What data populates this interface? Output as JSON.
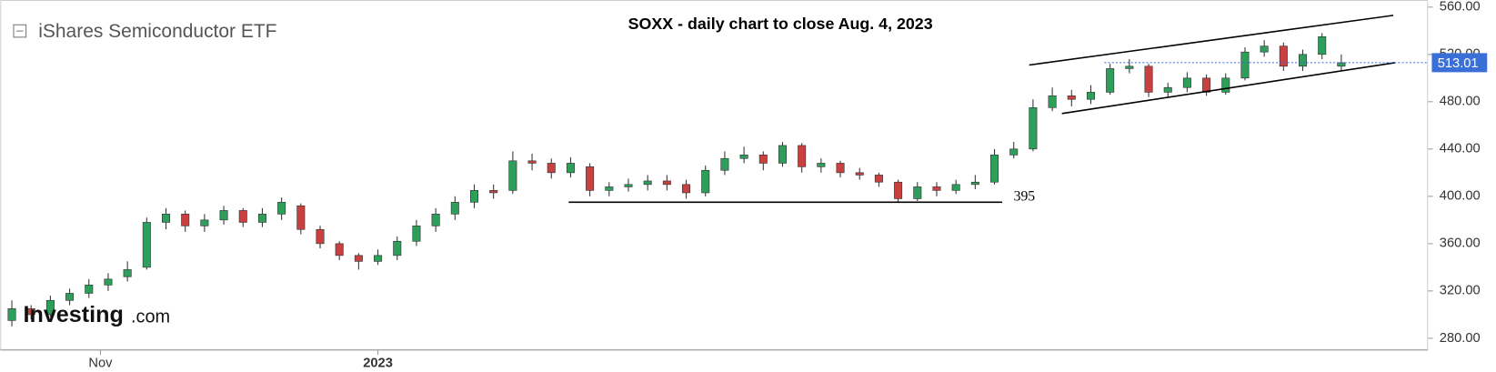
{
  "chart_data": {
    "type": "candlestick",
    "title": "SOXX - daily chart to close Aug. 4, 2023",
    "subtitle": "iShares Semiconductor ETF",
    "logo": "Investing",
    "logo_suffix": ".com",
    "up_color": "#2e9e5b",
    "down_color": "#c94040",
    "open": [
      295,
      305,
      300,
      312,
      318,
      325,
      332,
      340,
      378,
      385,
      375,
      380,
      388,
      378,
      385,
      392,
      372,
      360,
      350,
      345,
      350,
      362,
      375,
      385,
      395,
      405,
      405,
      430,
      428,
      420,
      425,
      405,
      408,
      410,
      413,
      410,
      403,
      422,
      432,
      435,
      428,
      443,
      425,
      428,
      420,
      418,
      412,
      398,
      408,
      405,
      410,
      412,
      435,
      440,
      475,
      485,
      482,
      488,
      508,
      510,
      488,
      492,
      500,
      488,
      500,
      522,
      527,
      510,
      520,
      510
    ],
    "high": [
      312,
      308,
      316,
      322,
      330,
      335,
      345,
      382,
      390,
      388,
      385,
      392,
      390,
      390,
      399,
      394,
      375,
      362,
      352,
      355,
      366,
      380,
      390,
      400,
      410,
      410,
      438,
      436,
      432,
      433,
      428,
      412,
      415,
      418,
      418,
      414,
      426,
      438,
      442,
      438,
      446,
      445,
      432,
      430,
      424,
      420,
      414,
      412,
      412,
      414,
      418,
      440,
      446,
      482,
      492,
      490,
      494,
      512,
      516,
      512,
      496,
      505,
      503,
      504,
      526,
      532,
      530,
      524,
      538,
      520
    ],
    "low": [
      290,
      296,
      298,
      308,
      314,
      320,
      328,
      338,
      372,
      370,
      370,
      376,
      374,
      374,
      380,
      368,
      356,
      346,
      338,
      342,
      346,
      358,
      370,
      380,
      390,
      398,
      402,
      422,
      415,
      416,
      400,
      400,
      404,
      405,
      405,
      398,
      400,
      418,
      428,
      422,
      425,
      420,
      420,
      416,
      414,
      408,
      395,
      396,
      400,
      402,
      406,
      410,
      432,
      438,
      472,
      476,
      478,
      486,
      504,
      484,
      484,
      488,
      485,
      486,
      498,
      518,
      506,
      506,
      516,
      506
    ],
    "close": [
      305,
      300,
      312,
      318,
      325,
      330,
      338,
      378,
      385,
      375,
      380,
      388,
      378,
      385,
      395,
      372,
      360,
      350,
      345,
      350,
      362,
      375,
      385,
      395,
      405,
      403,
      430,
      428,
      420,
      428,
      405,
      408,
      410,
      413,
      410,
      403,
      422,
      432,
      435,
      428,
      443,
      425,
      428,
      420,
      418,
      412,
      398,
      408,
      405,
      410,
      412,
      435,
      440,
      475,
      485,
      482,
      488,
      508,
      510,
      488,
      492,
      500,
      488,
      500,
      522,
      527,
      510,
      520,
      535,
      513.01
    ],
    "last_price": 513.01,
    "xlim": [
      -0.6,
      73.5
    ],
    "xticks": [
      {
        "value": 4.6,
        "label": "Nov"
      },
      {
        "value": 19,
        "label": "2023"
      }
    ],
    "ylim": [
      270,
      566
    ],
    "yticks": [
      {
        "value": 280,
        "label": "280.00"
      },
      {
        "value": 320,
        "label": "320.00"
      },
      {
        "value": 360,
        "label": "360.00"
      },
      {
        "value": 400,
        "label": "400.00"
      },
      {
        "value": 440,
        "label": "440.00"
      },
      {
        "value": 480,
        "label": "480.00"
      },
      {
        "value": 520,
        "label": "520.00"
      },
      {
        "value": 560,
        "label": "560.00"
      }
    ],
    "support": {
      "value": 395,
      "label": "395",
      "x": [
        28.9,
        51.4
      ]
    },
    "channel": {
      "upper": {
        "x": [
          52.8,
          71.7
        ],
        "y": [
          511,
          553
        ]
      },
      "lower": {
        "x": [
          54.5,
          71.8
        ],
        "y": [
          470,
          513
        ]
      }
    }
  }
}
